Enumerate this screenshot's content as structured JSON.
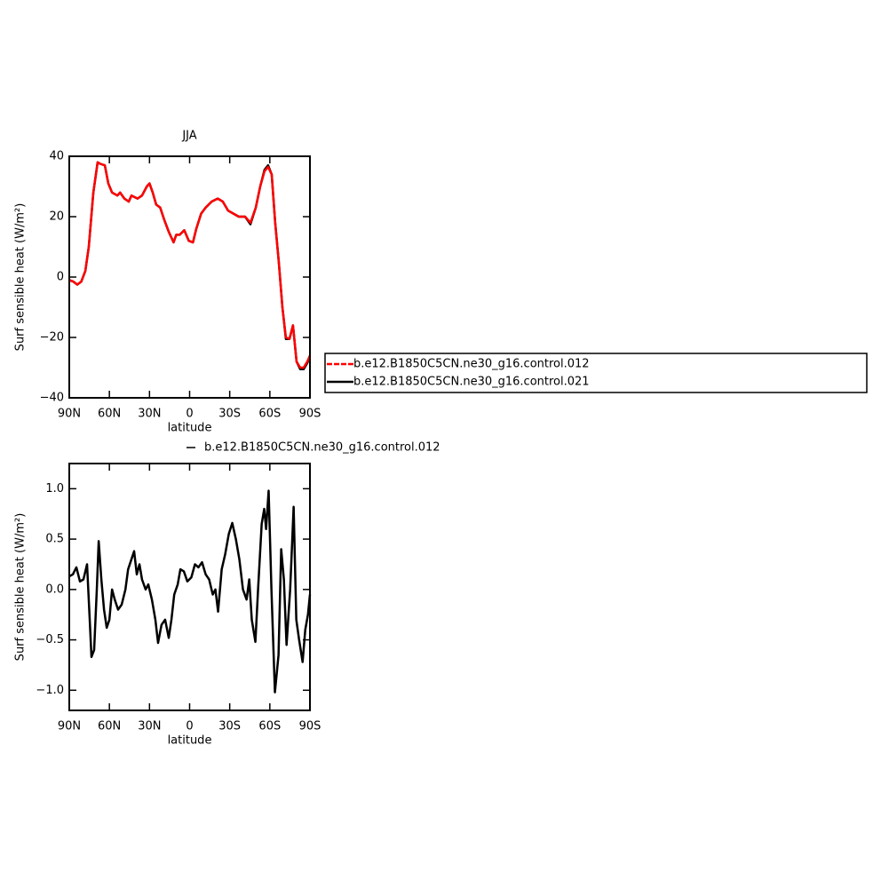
{
  "chart_data": [
    {
      "type": "line",
      "title": "JJA",
      "xlabel": "latitude",
      "ylabel": "Surf sensible heat (W/m²)",
      "xlim": [
        90,
        -90
      ],
      "ylim": [
        -40,
        40
      ],
      "xticks": [
        {
          "value": 90,
          "label": "90N"
        },
        {
          "value": 60,
          "label": "60N"
        },
        {
          "value": 30,
          "label": "30N"
        },
        0,
        {
          "value": -30,
          "label": "30S"
        },
        {
          "value": -60,
          "label": "60S"
        },
        {
          "value": -90,
          "label": "90S"
        }
      ],
      "yticks": [
        {
          "value": -40,
          "label": "−40"
        },
        {
          "value": -20,
          "label": "−20"
        },
        0,
        20,
        40
      ],
      "legend": "right",
      "x": [
        90,
        87,
        84,
        81,
        78,
        75.4,
        72,
        68.8,
        66.8,
        63.4,
        60.8,
        58,
        54,
        52,
        48.8,
        45.5,
        43.5,
        38.9,
        35.6,
        32,
        30,
        27.6,
        25,
        22,
        19,
        15.6,
        12,
        10,
        7.4,
        4,
        0.6,
        -2.5,
        -5,
        -8.6,
        -12,
        -16.5,
        -21,
        -24.8,
        -28.8,
        -32.8,
        -36.8,
        -41.5,
        -45.5,
        -49.5,
        -52.8,
        -56,
        -58.7,
        -61.4,
        -64,
        -66.7,
        -69.4,
        -72,
        -74.7,
        -77.3,
        -80,
        -82.7,
        -85.3,
        -88,
        -90
      ],
      "series": [
        {
          "name": "b.e12.B1850C5CN.ne30_g16.control.012",
          "color": "#ff0000",
          "values": [
            -1,
            -1.5,
            -2.5,
            -1.5,
            2,
            10,
            28,
            38,
            37.5,
            37,
            31,
            28,
            27,
            28,
            26,
            25,
            27,
            26,
            27,
            30,
            31,
            28,
            24,
            23,
            19,
            15,
            11.5,
            14,
            14,
            15.5,
            12,
            11.5,
            16,
            21,
            23,
            25,
            26,
            25,
            22,
            21,
            20,
            20,
            18,
            23,
            30,
            35,
            36.5,
            34,
            18,
            5,
            -10,
            -20,
            -20.5,
            -16,
            -28,
            -30,
            -30,
            -28,
            -26
          ]
        },
        {
          "name": "b.e12.B1850C5CN.ne30_g16.control.021",
          "color": "#000000",
          "values": [
            -1,
            -1.5,
            -2.5,
            -1.5,
            2,
            10,
            28,
            38,
            37.5,
            37,
            31,
            28,
            27,
            28,
            26,
            25,
            27,
            26,
            27,
            30,
            31,
            28,
            24,
            23,
            19,
            15,
            11.5,
            14,
            14,
            15.5,
            12,
            11.5,
            16,
            21,
            23,
            25,
            26,
            25,
            22,
            21,
            20,
            20,
            17.5,
            23,
            30,
            35.5,
            37,
            34,
            18,
            5,
            -10,
            -20.5,
            -20.5,
            -16,
            -28,
            -30.5,
            -30.5,
            -28.5,
            -26
          ]
        }
      ]
    },
    {
      "type": "line",
      "xlabel": "latitude",
      "ylabel": "Surf sensible heat (W/m²)",
      "xlim": [
        90,
        -90
      ],
      "ylim": [
        -1.2,
        1.25
      ],
      "xticks": [
        {
          "value": 90,
          "label": "90N"
        },
        {
          "value": 60,
          "label": "60N"
        },
        {
          "value": 30,
          "label": "30N"
        },
        0,
        {
          "value": -30,
          "label": "30S"
        },
        {
          "value": -60,
          "label": "60S"
        },
        {
          "value": -90,
          "label": "90S"
        }
      ],
      "yticks": [
        {
          "value": -1,
          "label": "−1.0"
        },
        {
          "value": -0.5,
          "label": "−0.5"
        },
        {
          "value": 0,
          "label": "0.0"
        },
        0.5,
        {
          "value": 1,
          "label": "1.0"
        }
      ],
      "legend": "top",
      "x": [
        90,
        87.3,
        84.7,
        82,
        79.4,
        76.7,
        74.7,
        73.4,
        71.4,
        69.4,
        68,
        66,
        64,
        62,
        60,
        58,
        56,
        53.5,
        50.8,
        48,
        46,
        43.5,
        41.5,
        39.5,
        37.5,
        35.6,
        32.9,
        30.9,
        28.2,
        25.6,
        23.6,
        21,
        18.3,
        15.6,
        13.6,
        11.5,
        8.9,
        6.9,
        4.3,
        1.7,
        -1.3,
        -4,
        -6.6,
        -9.3,
        -12,
        -14.6,
        -17.3,
        -19.3,
        -21.3,
        -24,
        -26.6,
        -29.3,
        -31.9,
        -34.6,
        -37.2,
        -39.9,
        -42.6,
        -44.6,
        -46.5,
        -49.2,
        -51.2,
        -53.9,
        -55.8,
        -57.2,
        -59.1,
        -61.2,
        -63.8,
        -66.5,
        -68.5,
        -70.5,
        -72.5,
        -75.2,
        -77.8,
        -79.8,
        -81.9,
        -84.5,
        -86.5,
        -88.5,
        -90
      ],
      "series": [
        {
          "name": "b.e12.B1850C5CN.ne30_g16.control.012",
          "color": "#000000",
          "values": [
            0.13,
            0.15,
            0.22,
            0.08,
            0.1,
            0.25,
            -0.3,
            -0.67,
            -0.6,
            0,
            0.48,
            0.1,
            -0.2,
            -0.38,
            -0.3,
            0,
            -0.1,
            -0.2,
            -0.15,
            0,
            0.2,
            0.3,
            0.38,
            0.15,
            0.25,
            0.1,
            0,
            0.05,
            -0.1,
            -0.3,
            -0.53,
            -0.35,
            -0.3,
            -0.48,
            -0.3,
            -0.05,
            0.05,
            0.2,
            0.18,
            0.08,
            0.12,
            0.25,
            0.22,
            0.27,
            0.15,
            0.1,
            -0.05,
            0,
            -0.22,
            0.2,
            0.35,
            0.55,
            0.66,
            0.5,
            0.3,
            0,
            -0.1,
            0.1,
            -0.3,
            -0.52,
            0,
            0.65,
            0.8,
            0.6,
            0.98,
            0,
            -1.02,
            -0.65,
            0.4,
            0.1,
            -0.55,
            0,
            0.82,
            -0.3,
            -0.5,
            -0.72,
            -0.4,
            -0.25,
            -0.05
          ]
        }
      ]
    }
  ]
}
